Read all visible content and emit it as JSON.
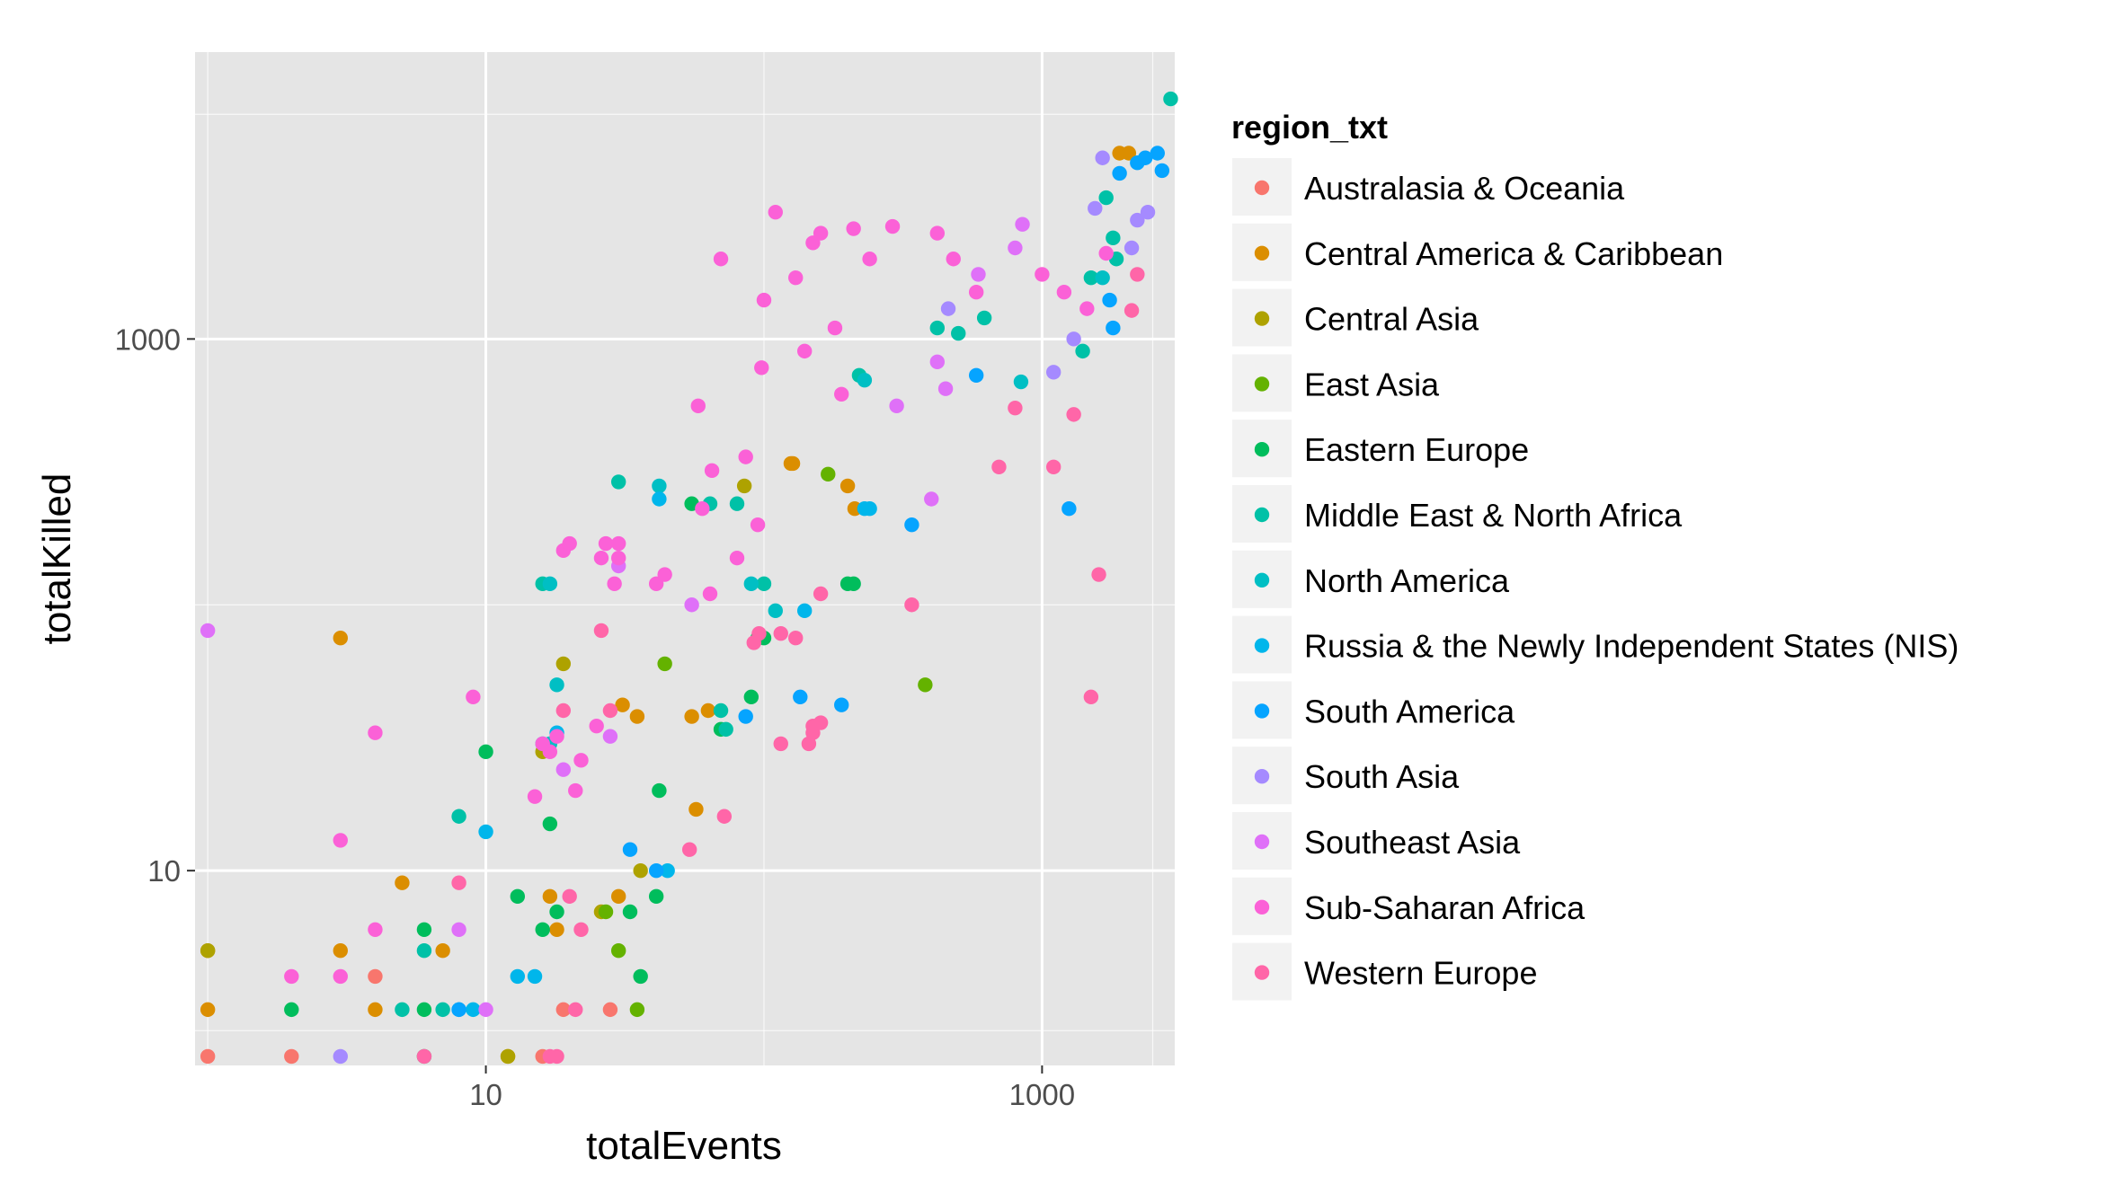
{
  "chart_data": {
    "type": "scatter",
    "xlabel": "totalEvents",
    "ylabel": "totalKilled",
    "x_scale": "log10",
    "y_scale": "log10",
    "xlim": [
      0.9,
      3000
    ],
    "ylim": [
      1.85,
      12000
    ],
    "x_ticks": [
      {
        "value": 10,
        "label": "10"
      },
      {
        "value": 1000,
        "label": "1000"
      }
    ],
    "y_ticks": [
      {
        "value": 10,
        "label": "10"
      },
      {
        "value": 1000,
        "label": "1000"
      }
    ],
    "x_minor": [
      1,
      100,
      2500
    ],
    "y_minor": [
      2.5,
      100,
      7000
    ],
    "grid": true,
    "panel_background": "#e5e5e5",
    "grid_color": "#ffffff",
    "legend": {
      "title": "region_txt",
      "position": "right"
    },
    "series": [
      {
        "name": "Australasia & Oceania",
        "color": "#F8766D",
        "points": [
          [
            1,
            2
          ],
          [
            2,
            2
          ],
          [
            4,
            4
          ],
          [
            16,
            2
          ],
          [
            19,
            3
          ],
          [
            28,
            3
          ]
        ]
      },
      {
        "name": "Central America & Caribbean",
        "color": "#DB8E00",
        "points": [
          [
            1,
            3
          ],
          [
            1,
            5
          ],
          [
            3,
            75
          ],
          [
            3,
            5
          ],
          [
            4,
            3
          ],
          [
            5,
            9
          ],
          [
            7,
            5
          ],
          [
            12,
            2
          ],
          [
            18,
            6
          ],
          [
            17,
            8
          ],
          [
            30,
            8
          ],
          [
            31,
            42
          ],
          [
            35,
            38
          ],
          [
            55,
            38
          ],
          [
            57,
            17
          ],
          [
            63,
            40
          ],
          [
            125,
            340
          ],
          [
            127,
            340
          ],
          [
            200,
            280
          ],
          [
            212,
            230
          ],
          [
            1900,
            5000
          ],
          [
            2050,
            5000
          ]
        ]
      },
      {
        "name": "Central Asia",
        "color": "#AEA200",
        "points": [
          [
            1,
            5
          ],
          [
            12,
            2
          ],
          [
            16,
            28
          ],
          [
            19,
            60
          ],
          [
            26,
            7
          ],
          [
            36,
            10
          ],
          [
            85,
            280
          ]
        ]
      },
      {
        "name": "East Asia",
        "color": "#64B200",
        "points": [
          [
            27,
            7
          ],
          [
            30,
            5
          ],
          [
            35,
            3
          ],
          [
            44,
            60
          ],
          [
            170,
            310
          ],
          [
            380,
            50
          ]
        ]
      },
      {
        "name": "Eastern Europe",
        "color": "#00BD5C",
        "points": [
          [
            2,
            3
          ],
          [
            6,
            6
          ],
          [
            6,
            3
          ],
          [
            6,
            2
          ],
          [
            10,
            28
          ],
          [
            13,
            8
          ],
          [
            16,
            6
          ],
          [
            17,
            15
          ],
          [
            18,
            7
          ],
          [
            33,
            7
          ],
          [
            36,
            4
          ],
          [
            41,
            8
          ],
          [
            42,
            20
          ],
          [
            55,
            240
          ],
          [
            70,
            34
          ],
          [
            90,
            45
          ],
          [
            95,
            75
          ],
          [
            100,
            75
          ],
          [
            200,
            120
          ],
          [
            210,
            120
          ]
        ]
      },
      {
        "name": "Middle East & North Africa",
        "color": "#00C1A7",
        "points": [
          [
            5,
            3
          ],
          [
            6,
            5
          ],
          [
            7,
            3
          ],
          [
            8,
            16
          ],
          [
            16,
            120
          ],
          [
            30,
            290
          ],
          [
            64,
            240
          ],
          [
            70,
            40
          ],
          [
            73,
            34
          ],
          [
            80,
            240
          ],
          [
            100,
            120
          ],
          [
            220,
            730
          ],
          [
            420,
            1100
          ],
          [
            500,
            1050
          ],
          [
            620,
            1200
          ],
          [
            1400,
            900
          ],
          [
            1500,
            1700
          ],
          [
            1700,
            3400
          ],
          [
            1800,
            2400
          ],
          [
            1850,
            2000
          ],
          [
            2900,
            8000
          ]
        ]
      },
      {
        "name": "North America",
        "color": "#00BFC4",
        "points": [
          [
            17,
            120
          ],
          [
            17,
            30
          ],
          [
            18,
            50
          ],
          [
            42,
            280
          ],
          [
            90,
            120
          ],
          [
            110,
            95
          ],
          [
            230,
            700
          ],
          [
            840,
            690
          ],
          [
            1650,
            1700
          ]
        ]
      },
      {
        "name": "Russia & the Newly Independent States (NIS)",
        "color": "#00B6EB",
        "points": [
          [
            8,
            3
          ],
          [
            9,
            3
          ],
          [
            10,
            14
          ],
          [
            13,
            4
          ],
          [
            15,
            4
          ],
          [
            16,
            30
          ],
          [
            18,
            33
          ],
          [
            42,
            250
          ],
          [
            45,
            10
          ],
          [
            140,
            95
          ],
          [
            230,
            230
          ],
          [
            240,
            230
          ]
        ]
      },
      {
        "name": "South America",
        "color": "#06A4FF",
        "points": [
          [
            8,
            3
          ],
          [
            41,
            10
          ],
          [
            33,
            12
          ],
          [
            86,
            38
          ],
          [
            135,
            45
          ],
          [
            190,
            42
          ],
          [
            340,
            200
          ],
          [
            580,
            730
          ],
          [
            1250,
            230
          ],
          [
            1750,
            1400
          ],
          [
            1800,
            1100
          ],
          [
            1900,
            4200
          ],
          [
            2200,
            4600
          ],
          [
            2350,
            4800
          ],
          [
            2600,
            5000
          ],
          [
            2700,
            4300
          ]
        ]
      },
      {
        "name": "South Asia",
        "color": "#A58AFF",
        "points": [
          [
            3,
            2
          ],
          [
            460,
            1300
          ],
          [
            1100,
            750
          ],
          [
            1300,
            1000
          ],
          [
            1550,
            3100
          ],
          [
            1650,
            4800
          ],
          [
            2100,
            2200
          ],
          [
            2200,
            2800
          ],
          [
            2400,
            3000
          ]
        ]
      },
      {
        "name": "Southeast Asia",
        "color": "#DF70F8",
        "points": [
          [
            1,
            80
          ],
          [
            8,
            6
          ],
          [
            10,
            3
          ],
          [
            19,
            24
          ],
          [
            28,
            32
          ],
          [
            30,
            140
          ],
          [
            55,
            100
          ],
          [
            300,
            560
          ],
          [
            400,
            250
          ],
          [
            420,
            820
          ],
          [
            450,
            650
          ],
          [
            590,
            1750
          ],
          [
            800,
            2200
          ],
          [
            850,
            2700
          ]
        ]
      },
      {
        "name": "Sub-Saharan Africa",
        "color": "#FB61D7",
        "points": [
          [
            2,
            4
          ],
          [
            3,
            4
          ],
          [
            3,
            13
          ],
          [
            4,
            6
          ],
          [
            4,
            33
          ],
          [
            9,
            45
          ],
          [
            15,
            19
          ],
          [
            16,
            30
          ],
          [
            17,
            28
          ],
          [
            18,
            32
          ],
          [
            19,
            160
          ],
          [
            20,
            170
          ],
          [
            21,
            20
          ],
          [
            22,
            26
          ],
          [
            25,
            35
          ],
          [
            26,
            150
          ],
          [
            27,
            170
          ],
          [
            29,
            120
          ],
          [
            30,
            150
          ],
          [
            30,
            170
          ],
          [
            41,
            120
          ],
          [
            44,
            130
          ],
          [
            58,
            560
          ],
          [
            60,
            230
          ],
          [
            64,
            110
          ],
          [
            65,
            320
          ],
          [
            70,
            2000
          ],
          [
            80,
            150
          ],
          [
            86,
            360
          ],
          [
            95,
            200
          ],
          [
            98,
            780
          ],
          [
            100,
            1400
          ],
          [
            110,
            3000
          ],
          [
            130,
            1700
          ],
          [
            140,
            900
          ],
          [
            150,
            2300
          ],
          [
            160,
            2500
          ],
          [
            180,
            1100
          ],
          [
            190,
            620
          ],
          [
            210,
            2600
          ],
          [
            240,
            2000
          ],
          [
            290,
            2650
          ],
          [
            420,
            2500
          ],
          [
            480,
            2000
          ],
          [
            580,
            1500
          ],
          [
            1000,
            1750
          ],
          [
            1200,
            1500
          ],
          [
            1450,
            1300
          ],
          [
            1700,
            2100
          ]
        ]
      },
      {
        "name": "Western Europe",
        "color": "#FF66A8",
        "points": [
          [
            6,
            2
          ],
          [
            8,
            9
          ],
          [
            17,
            2
          ],
          [
            18,
            2
          ],
          [
            19,
            40
          ],
          [
            20,
            8
          ],
          [
            21,
            3
          ],
          [
            22,
            6
          ],
          [
            26,
            80
          ],
          [
            28,
            40
          ],
          [
            54,
            12
          ],
          [
            72,
            16
          ],
          [
            92,
            72
          ],
          [
            96,
            78
          ],
          [
            115,
            30
          ],
          [
            115,
            78
          ],
          [
            130,
            75
          ],
          [
            145,
            30
          ],
          [
            150,
            35
          ],
          [
            150,
            33
          ],
          [
            160,
            36
          ],
          [
            160,
            110
          ],
          [
            340,
            100
          ],
          [
            700,
            330
          ],
          [
            800,
            550
          ],
          [
            1100,
            330
          ],
          [
            1300,
            520
          ],
          [
            1500,
            45
          ],
          [
            1600,
            130
          ],
          [
            2100,
            1280
          ],
          [
            2200,
            1750
          ]
        ]
      }
    ]
  }
}
